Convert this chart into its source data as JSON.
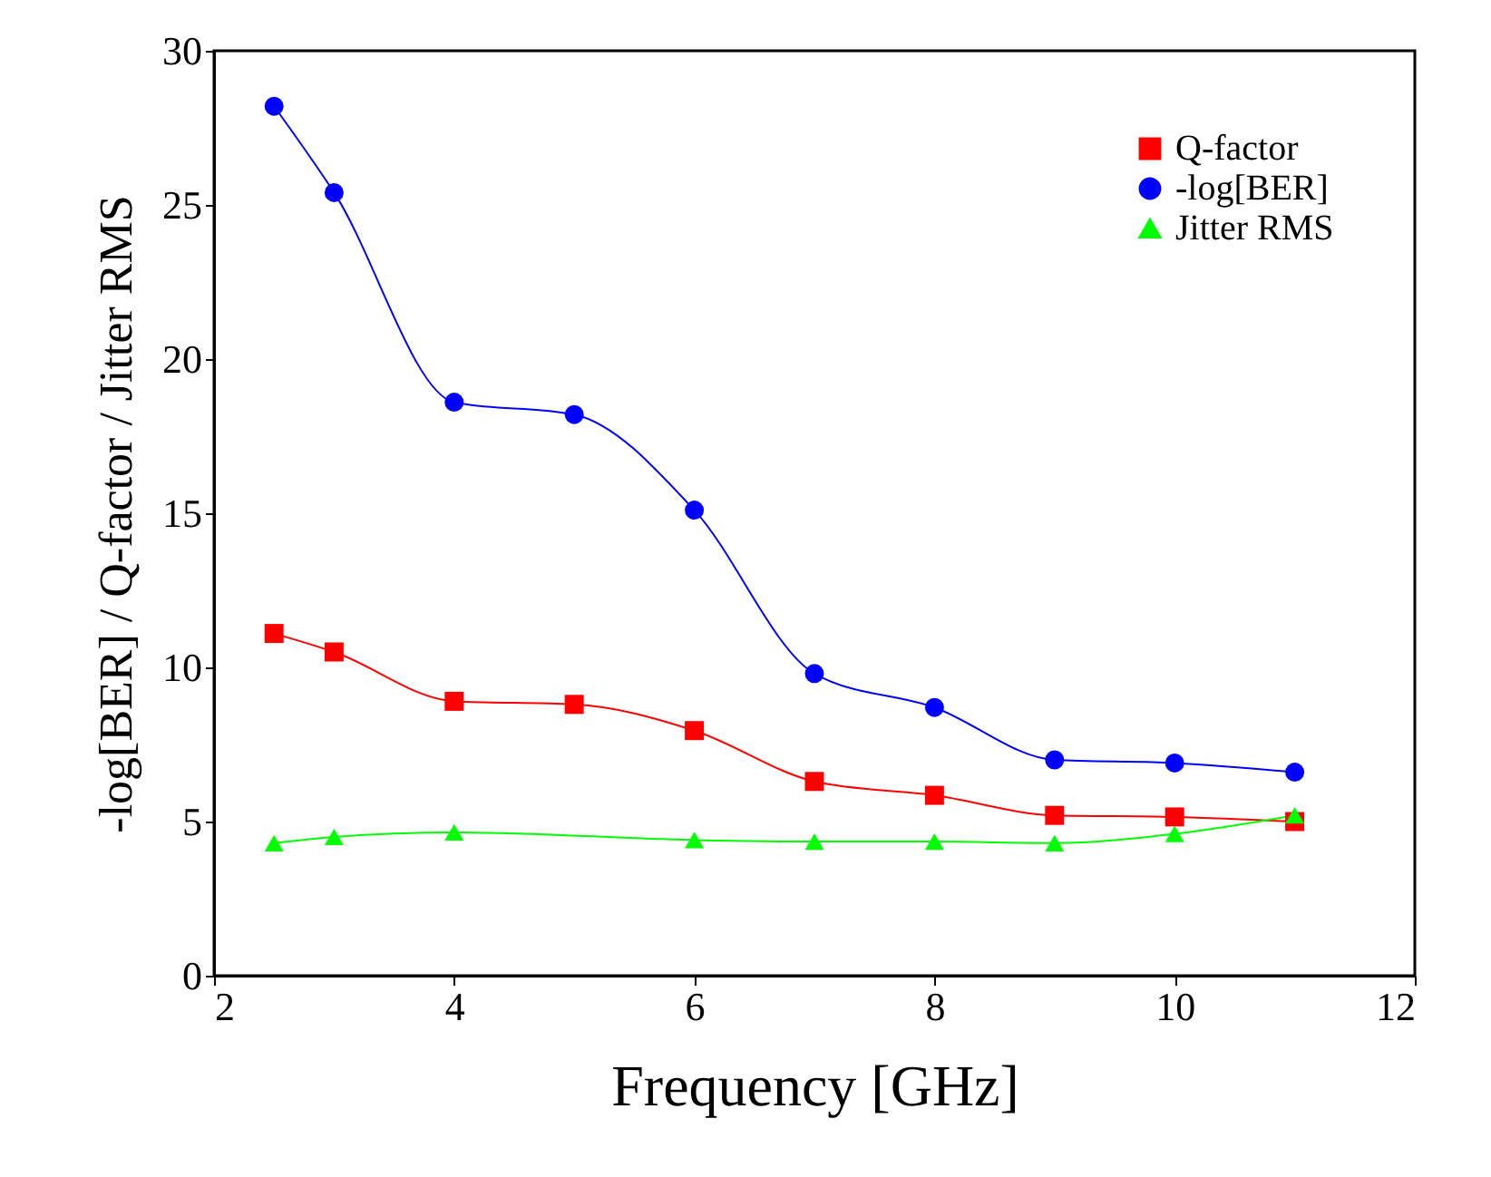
{
  "chart_data": {
    "type": "line",
    "xlabel": "Frequency [GHz]",
    "ylabel": "-log[BER] / Q-factor / Jitter RMS",
    "xlim": [
      2,
      12
    ],
    "xticks": [
      2,
      4,
      6,
      8,
      10,
      12
    ],
    "ylim": [
      0,
      30
    ],
    "yticks": [
      0,
      5,
      10,
      15,
      20,
      25,
      30
    ],
    "grid": false,
    "legend": "top right",
    "line_style": "solid",
    "series": [
      {
        "name": "Q-factor",
        "color": "#ff0000",
        "marker": "square",
        "x": [
          2.5,
          3,
          4,
          5,
          6,
          7,
          8,
          9,
          10,
          11
        ],
        "values": [
          11.1,
          10.5,
          8.9,
          8.8,
          7.95,
          6.3,
          5.85,
          5.2,
          5.15,
          5.0
        ]
      },
      {
        "name": "-log[BER]",
        "color": "#0000ff",
        "marker": "circle",
        "x": [
          2.5,
          3,
          4,
          5,
          6,
          7,
          8,
          9,
          10,
          11
        ],
        "values": [
          28.2,
          25.4,
          18.6,
          18.2,
          15.1,
          9.8,
          8.7,
          7.0,
          6.9,
          6.6
        ]
      },
      {
        "name": "Jitter RMS",
        "color": "#00ff00",
        "marker": "triangle",
        "x": [
          2.5,
          3,
          4,
          6,
          7,
          8,
          9,
          10,
          11
        ],
        "values": [
          4.3,
          4.5,
          4.65,
          4.4,
          4.35,
          4.35,
          4.3,
          4.6,
          5.2
        ]
      }
    ]
  }
}
